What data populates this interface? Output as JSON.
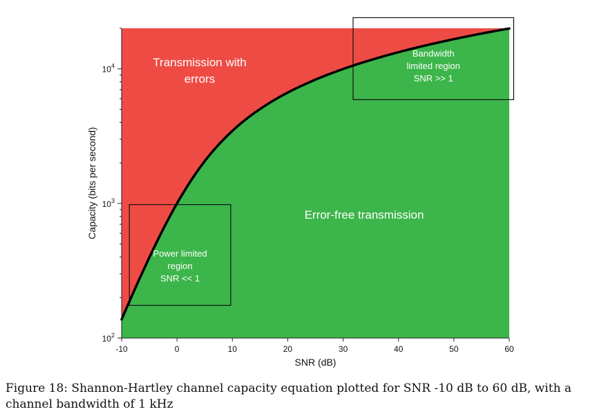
{
  "chart_data": {
    "type": "area",
    "xlabel": "SNR (dB)",
    "ylabel": "Capacity (bits per second)",
    "xlim": [
      -10,
      60
    ],
    "ylim": [
      100,
      20000
    ],
    "yscale": "log",
    "x_ticks": [
      -10,
      0,
      10,
      20,
      30,
      40,
      50,
      60
    ],
    "y_ticks": [
      {
        "base": "10",
        "exp": "2",
        "value": 100
      },
      {
        "base": "10",
        "exp": "3",
        "value": 1000
      },
      {
        "base": "10",
        "exp": "4",
        "value": 10000
      }
    ],
    "bandwidth_hz": 1000,
    "curve": {
      "x": [
        -10,
        -5,
        0,
        5,
        10,
        15,
        20,
        25,
        30,
        35,
        40,
        45,
        50,
        55,
        60
      ],
      "y": [
        138,
        387,
        1000,
        2057,
        3459,
        5044,
        6658,
        8305,
        9967,
        11628,
        13288,
        14950,
        16610,
        18271,
        19932
      ]
    },
    "regions": {
      "above_curve": {
        "label_lines": [
          "Transmission with",
          "errors"
        ],
        "color": "#ef4b45"
      },
      "below_curve": {
        "label_lines": [
          "Error-free transmission"
        ],
        "color": "#3cb54a"
      }
    },
    "annotations": [
      {
        "lines": [
          "Power limited",
          "region",
          "SNR << 1"
        ],
        "box_x": [
          -8.6,
          9.7
        ],
        "box_y": [
          175,
          980
        ]
      },
      {
        "lines": [
          "Bandwidth",
          "limited region",
          "SNR >> 1"
        ],
        "box_x": [
          31.8,
          60.8
        ],
        "box_y": [
          5900,
          24000
        ]
      }
    ]
  },
  "caption": {
    "line1": "Figure 18:  Shannon-Hartley channel capacity equation plotted for SNR -10 dB to 60 dB, with a",
    "line2": "channel bandwidth of 1 kHz"
  }
}
